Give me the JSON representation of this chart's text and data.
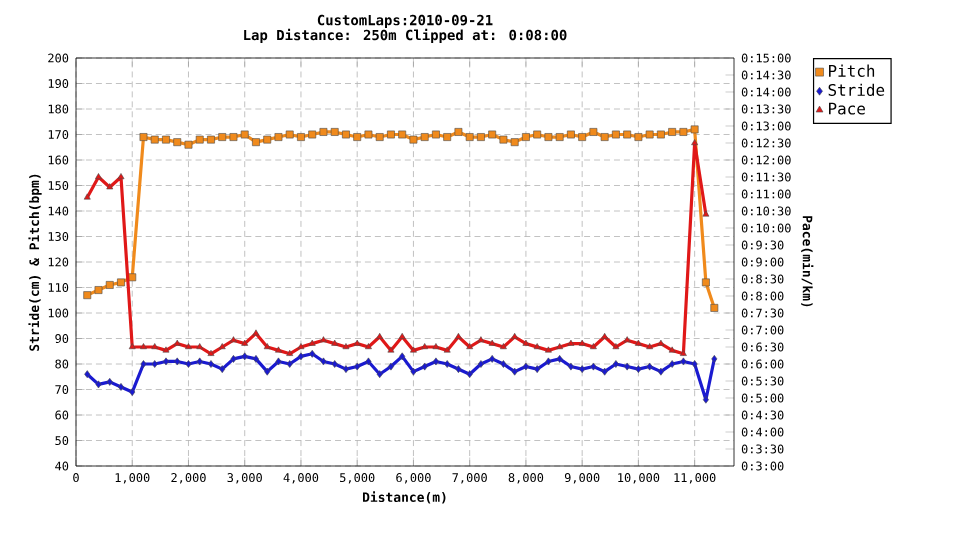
{
  "chart_data": {
    "type": "line",
    "title": "CustomLaps:2010-09-21",
    "subtitle": "Lap Distance: 250m Clipped at: 0:08:00",
    "xlabel": "Distance(m)",
    "ylabel": "Stride(cm) & Pitch(bpm)",
    "y2label": "Pace(min/km)",
    "x": [
      200,
      400,
      600,
      800,
      1000,
      1200,
      1400,
      1600,
      1800,
      2000,
      2200,
      2400,
      2600,
      2800,
      3000,
      3200,
      3400,
      3600,
      3800,
      4000,
      4200,
      4400,
      4600,
      4800,
      5000,
      5200,
      5400,
      5600,
      5800,
      6000,
      6200,
      6400,
      6600,
      6800,
      7000,
      7200,
      7400,
      7600,
      7800,
      8000,
      8200,
      8400,
      8600,
      8800,
      9000,
      9200,
      9400,
      9600,
      9800,
      10000,
      10200,
      10400,
      10600,
      10800,
      11000,
      11200,
      11350
    ],
    "series": [
      {
        "name": "Pitch",
        "color": "#f08a1c",
        "marker": "square",
        "values": [
          107,
          109,
          111,
          112,
          114,
          169,
          168,
          168,
          167,
          166,
          168,
          168,
          169,
          169,
          170,
          167,
          168,
          169,
          170,
          169,
          170,
          171,
          171,
          170,
          169,
          170,
          169,
          170,
          170,
          168,
          169,
          170,
          169,
          171,
          169,
          169,
          170,
          168,
          167,
          169,
          170,
          169,
          169,
          170,
          169,
          171,
          169,
          170,
          170,
          169,
          170,
          170,
          171,
          171,
          172,
          112,
          102
        ]
      },
      {
        "name": "Stride",
        "color": "#1a1ad0",
        "marker": "diamond",
        "values": [
          76,
          72,
          73,
          71,
          69,
          80,
          80,
          81,
          81,
          80,
          81,
          80,
          78,
          82,
          83,
          82,
          77,
          81,
          80,
          83,
          84,
          81,
          80,
          78,
          79,
          81,
          76,
          79,
          83,
          77,
          79,
          81,
          80,
          78,
          76,
          80,
          82,
          80,
          77,
          79,
          78,
          81,
          82,
          79,
          78,
          79,
          77,
          80,
          79,
          78,
          79,
          77,
          80,
          81,
          80,
          66,
          82
        ]
      },
      {
        "name": "Pace",
        "color": "#e01818",
        "marker": "triangle",
        "axis": "y2",
        "values": [
          10.9,
          11.5,
          11.2,
          11.5,
          6.5,
          6.5,
          6.5,
          6.4,
          6.6,
          6.5,
          6.5,
          6.3,
          6.5,
          6.7,
          6.6,
          6.9,
          6.5,
          6.4,
          6.3,
          6.5,
          6.6,
          6.7,
          6.6,
          6.5,
          6.6,
          6.5,
          6.8,
          6.4,
          6.8,
          6.4,
          6.5,
          6.5,
          6.4,
          6.8,
          6.5,
          6.7,
          6.6,
          6.5,
          6.8,
          6.6,
          6.5,
          6.4,
          6.5,
          6.6,
          6.6,
          6.5,
          6.8,
          6.5,
          6.7,
          6.6,
          6.5,
          6.6,
          6.4,
          6.3,
          12.5,
          10.4,
          null
        ]
      }
    ],
    "xlim": [
      0,
      11700
    ],
    "xticks": [
      0,
      {
        "value": 1000,
        "label": "1,000"
      },
      {
        "value": 2000,
        "label": "2,000"
      },
      {
        "value": 3000,
        "label": "3,000"
      },
      {
        "value": 4000,
        "label": "4,000"
      },
      {
        "value": 5000,
        "label": "5,000"
      },
      {
        "value": 6000,
        "label": "6,000"
      },
      {
        "value": 7000,
        "label": "7,000"
      },
      {
        "value": 8000,
        "label": "8,000"
      },
      {
        "value": 9000,
        "label": "9,000"
      },
      {
        "value": 10000,
        "label": "10,000"
      },
      {
        "value": 11000,
        "label": "11,000"
      }
    ],
    "ylim": [
      40,
      200
    ],
    "yticks": [
      40,
      50,
      60,
      70,
      80,
      90,
      100,
      110,
      120,
      130,
      140,
      150,
      160,
      170,
      180,
      190,
      200
    ],
    "y2lim": [
      3,
      15
    ],
    "y2ticks": [
      {
        "value": 3,
        "label": "0:3:00"
      },
      {
        "value": 3.5,
        "label": "0:3:30"
      },
      {
        "value": 4,
        "label": "0:4:00"
      },
      {
        "value": 4.5,
        "label": "0:4:30"
      },
      {
        "value": 5,
        "label": "0:5:00"
      },
      {
        "value": 5.5,
        "label": "0:5:30"
      },
      {
        "value": 6,
        "label": "0:6:00"
      },
      {
        "value": 6.5,
        "label": "0:6:30"
      },
      {
        "value": 7,
        "label": "0:7:00"
      },
      {
        "value": 7.5,
        "label": "0:7:30"
      },
      {
        "value": 8,
        "label": "0:8:00"
      },
      {
        "value": 8.5,
        "label": "0:8:30"
      },
      {
        "value": 9,
        "label": "0:9:00"
      },
      {
        "value": 9.5,
        "label": "0:9:30"
      },
      {
        "value": 10,
        "label": "0:10:00"
      },
      {
        "value": 10.5,
        "label": "0:10:30"
      },
      {
        "value": 11,
        "label": "0:11:00"
      },
      {
        "value": 11.5,
        "label": "0:11:30"
      },
      {
        "value": 12,
        "label": "0:12:00"
      },
      {
        "value": 12.5,
        "label": "0:12:30"
      },
      {
        "value": 13,
        "label": "0:13:00"
      },
      {
        "value": 13.5,
        "label": "0:13:30"
      },
      {
        "value": 14,
        "label": "0:14:00"
      },
      {
        "value": 14.5,
        "label": "0:14:30"
      },
      {
        "value": 15,
        "label": "0:15:00"
      }
    ],
    "grid": true,
    "legend": "top right"
  }
}
